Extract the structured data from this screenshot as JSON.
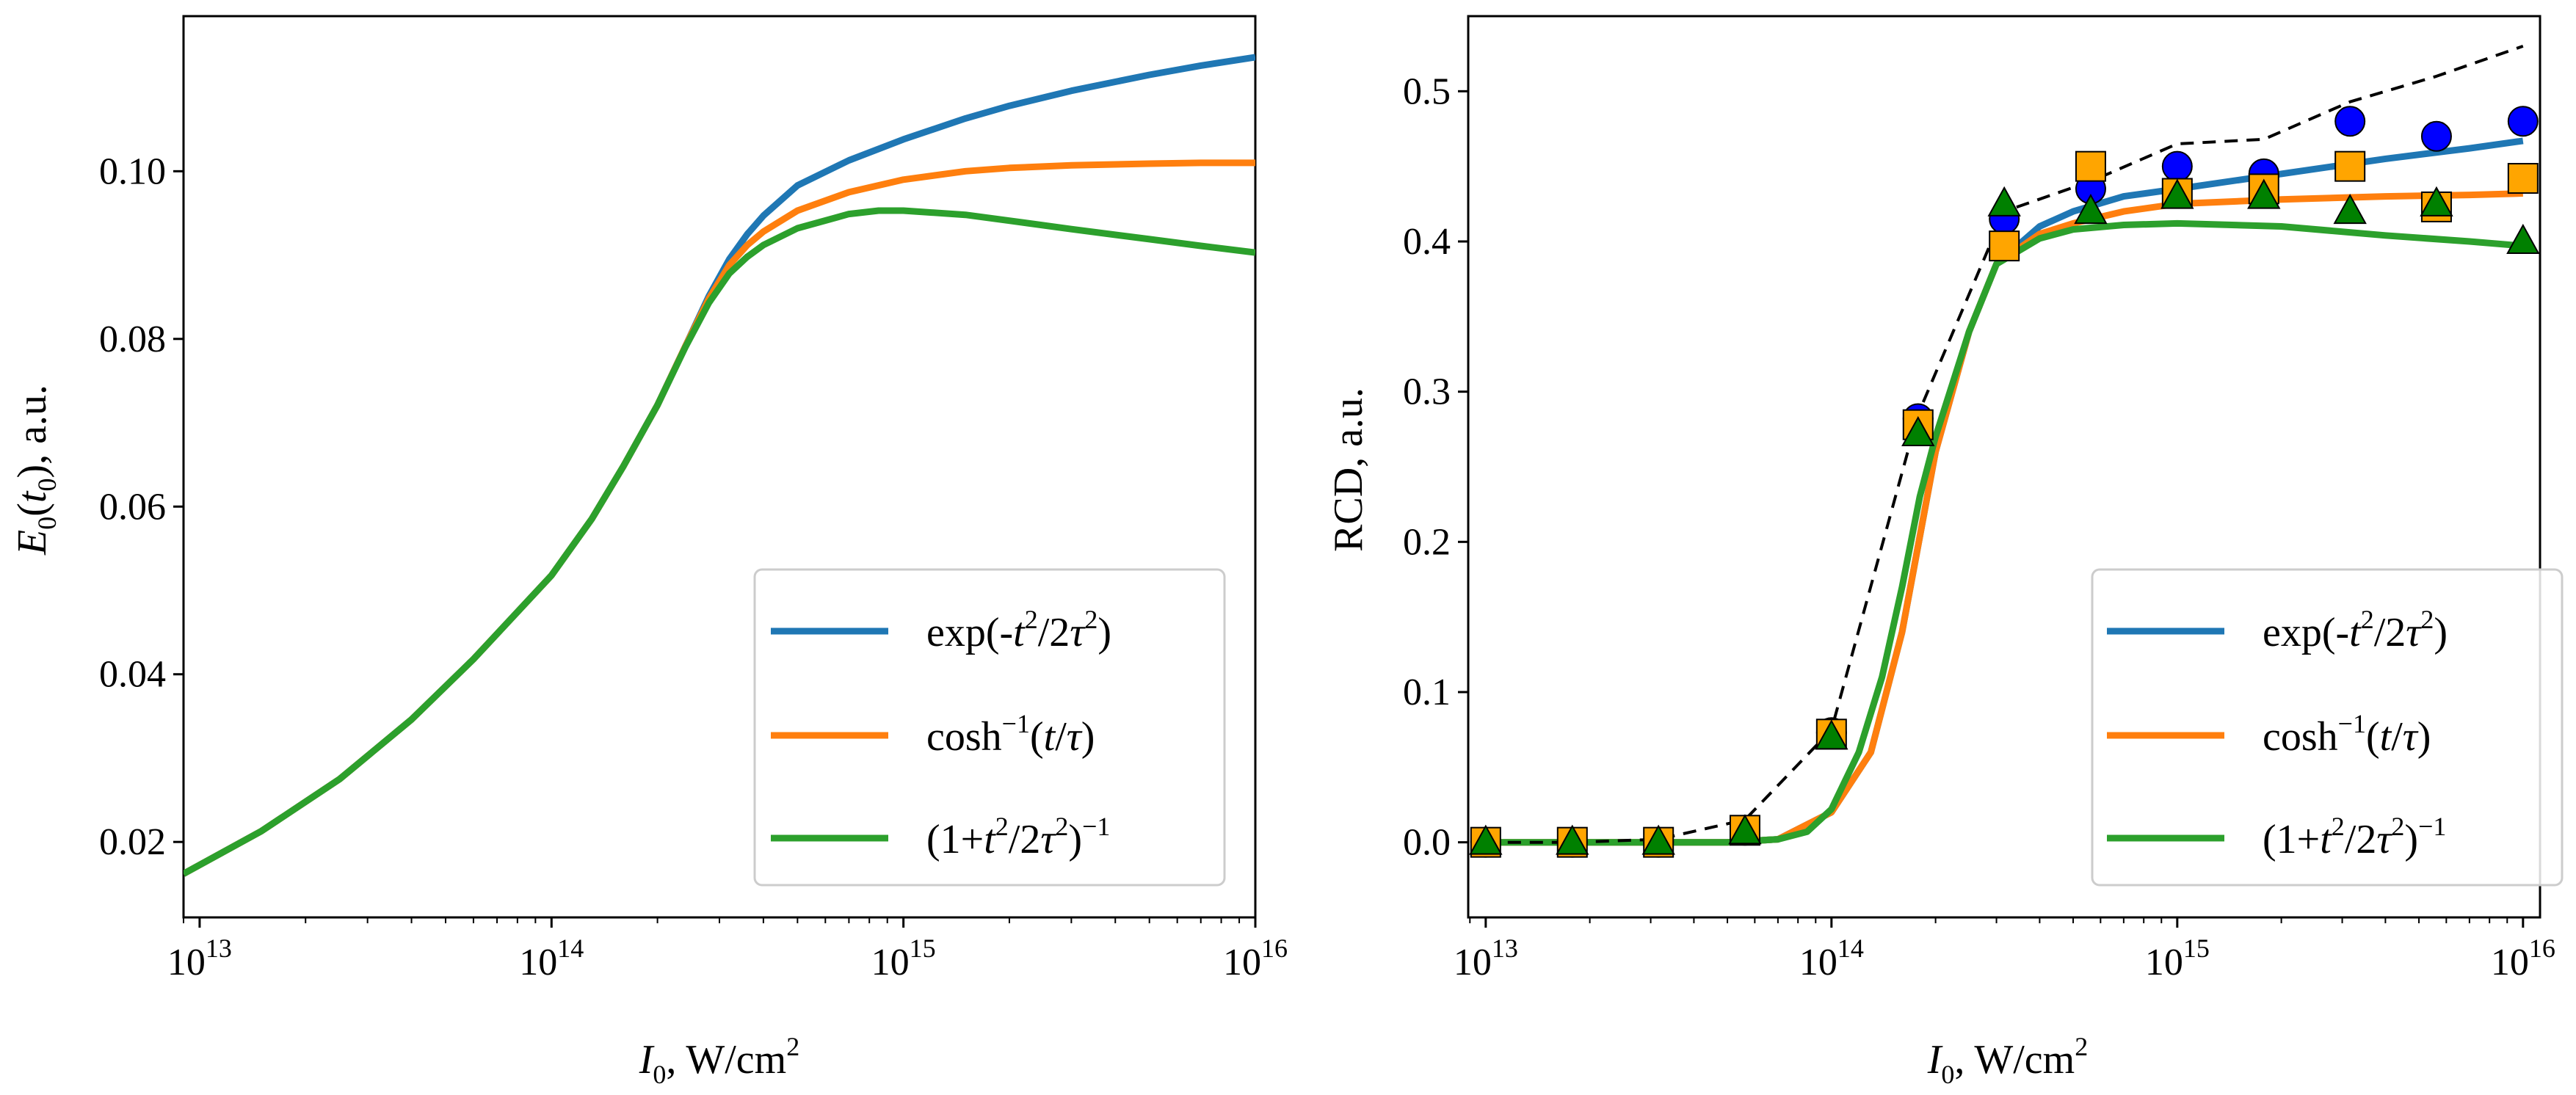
{
  "colors": {
    "exp": "#1f77b4",
    "cosh": "#ff7f0e",
    "lor": "#2ca02c",
    "circle_marker": "#0000ff",
    "square_marker": "#ffa500",
    "triangle_marker": "#008000",
    "dashed": "#000000"
  },
  "legend": {
    "exp": {
      "pre": "exp(-",
      "t": "t",
      "sup1": "2",
      "mid": "/2",
      "tau": "τ",
      "sup2": "2",
      "post": ")"
    },
    "cosh": {
      "pre": "cosh",
      "sup": "−1",
      "open": "(",
      "t": "t",
      "slash": "/",
      "tau": "τ",
      "close": ")"
    },
    "lor": {
      "pre": "(1+",
      "t": "t",
      "sup1": "2",
      "mid": "/2",
      "tau": "τ",
      "sup2": "2",
      "close": ")",
      "sup3": "−1"
    }
  },
  "xaxis": {
    "label_var": "I",
    "label_sub": "0",
    "label_unit": ", W/cm",
    "label_sup": "2",
    "ticks": [
      {
        "value": 10000000000000.0,
        "base": "10",
        "exp": "13"
      },
      {
        "value": 100000000000000.0,
        "base": "10",
        "exp": "14"
      },
      {
        "value": 1000000000000000.0,
        "base": "10",
        "exp": "15"
      },
      {
        "value": 1e+16,
        "base": "10",
        "exp": "16"
      }
    ]
  },
  "chart_data": [
    {
      "type": "line",
      "title": "",
      "xscale": "log",
      "xlim": [
        9000000000000.0,
        1e+16
      ],
      "ylim": [
        0.011,
        0.1185
      ],
      "ylabel": {
        "var": "E",
        "sub1": "0",
        "open": "(",
        "t": "t",
        "sub2": "0",
        "close": "), a.u."
      },
      "yticks": [
        "0.02",
        "0.04",
        "0.06",
        "0.08",
        "0.10"
      ],
      "legend_position": "lower-right",
      "series": [
        {
          "name": "exp(-t^2/2τ^2)",
          "color_key": "exp",
          "x": [
            9000000000000.0,
            15000000000000.0,
            25000000000000.0,
            40000000000000.0,
            60000000000000.0,
            100000000000000.0,
            130000000000000.0,
            160000000000000.0,
            200000000000000.0,
            240000000000000.0,
            280000000000000.0,
            320000000000000.0,
            360000000000000.0,
            400000000000000.0,
            500000000000000.0,
            700000000000000.0,
            1000000000000000.0,
            1500000000000000.0,
            2000000000000000.0,
            3000000000000000.0,
            5000000000000000.0,
            7000000000000000.0,
            1e+16
          ],
          "values": [
            0.0162,
            0.0213,
            0.0275,
            0.0346,
            0.0418,
            0.0518,
            0.0585,
            0.0648,
            0.0721,
            0.0791,
            0.0851,
            0.0895,
            0.0925,
            0.0947,
            0.0983,
            0.1013,
            0.1038,
            0.1063,
            0.1078,
            0.1096,
            0.1115,
            0.1126,
            0.1136
          ]
        },
        {
          "name": "cosh^-1(t/τ)",
          "color_key": "cosh",
          "x": [
            9000000000000.0,
            15000000000000.0,
            25000000000000.0,
            40000000000000.0,
            60000000000000.0,
            100000000000000.0,
            130000000000000.0,
            160000000000000.0,
            200000000000000.0,
            240000000000000.0,
            280000000000000.0,
            320000000000000.0,
            360000000000000.0,
            400000000000000.0,
            500000000000000.0,
            700000000000000.0,
            1000000000000000.0,
            1500000000000000.0,
            2000000000000000.0,
            3000000000000000.0,
            5000000000000000.0,
            7000000000000000.0,
            1e+16
          ],
          "values": [
            0.0162,
            0.0213,
            0.0275,
            0.0346,
            0.0418,
            0.0518,
            0.0585,
            0.0648,
            0.0721,
            0.0791,
            0.0848,
            0.0888,
            0.0912,
            0.0928,
            0.0953,
            0.0975,
            0.099,
            0.1,
            0.1004,
            0.1007,
            0.1009,
            0.101,
            0.101
          ]
        },
        {
          "name": "(1+t^2/2τ^2)^-1",
          "color_key": "lor",
          "x": [
            9000000000000.0,
            15000000000000.0,
            25000000000000.0,
            40000000000000.0,
            60000000000000.0,
            100000000000000.0,
            130000000000000.0,
            160000000000000.0,
            200000000000000.0,
            240000000000000.0,
            280000000000000.0,
            320000000000000.0,
            360000000000000.0,
            400000000000000.0,
            500000000000000.0,
            700000000000000.0,
            850000000000000.0,
            1000000000000000.0,
            1500000000000000.0,
            2000000000000000.0,
            3000000000000000.0,
            5000000000000000.0,
            7000000000000000.0,
            1e+16
          ],
          "values": [
            0.0162,
            0.0213,
            0.0275,
            0.0346,
            0.0418,
            0.0518,
            0.0585,
            0.0648,
            0.0721,
            0.079,
            0.0843,
            0.0878,
            0.0898,
            0.0912,
            0.0932,
            0.0949,
            0.0953,
            0.0953,
            0.0948,
            0.0941,
            0.0931,
            0.0919,
            0.0911,
            0.0903
          ]
        }
      ]
    },
    {
      "type": "line",
      "title": "",
      "xscale": "log",
      "xlim": [
        8900000000000.0,
        1.12e+16
      ],
      "ylim": [
        -0.05,
        0.55
      ],
      "ylabel": {
        "text": "RCD, a.u."
      },
      "yticks": [
        "0.0",
        "0.1",
        "0.2",
        "0.3",
        "0.4",
        "0.5"
      ],
      "legend_position": "lower-right",
      "series": [
        {
          "name": "exp(-t^2/2τ^2)",
          "color_key": "exp",
          "x": [
            10000000000000.0,
            30000000000000.0,
            50000000000000.0,
            70000000000000.0,
            100000000000000.0,
            130000000000000.0,
            160000000000000.0,
            200000000000000.0,
            250000000000000.0,
            300000000000000.0,
            400000000000000.0,
            500000000000000.0,
            700000000000000.0,
            1000000000000000.0,
            2000000000000000.0,
            4000000000000000.0,
            7000000000000000.0,
            1e+16
          ],
          "values": [
            0.0,
            0.0,
            0.0,
            0.002,
            0.02,
            0.06,
            0.14,
            0.26,
            0.34,
            0.385,
            0.41,
            0.42,
            0.43,
            0.435,
            0.445,
            0.455,
            0.462,
            0.467
          ]
        },
        {
          "name": "cosh^-1(t/τ)",
          "color_key": "cosh",
          "x": [
            10000000000000.0,
            30000000000000.0,
            50000000000000.0,
            70000000000000.0,
            100000000000000.0,
            130000000000000.0,
            160000000000000.0,
            200000000000000.0,
            250000000000000.0,
            300000000000000.0,
            400000000000000.0,
            500000000000000.0,
            700000000000000.0,
            1000000000000000.0,
            2000000000000000.0,
            4000000000000000.0,
            7000000000000000.0,
            1e+16
          ],
          "values": [
            0.0,
            0.0,
            0.0,
            0.002,
            0.02,
            0.06,
            0.14,
            0.26,
            0.34,
            0.385,
            0.405,
            0.412,
            0.42,
            0.425,
            0.428,
            0.43,
            0.431,
            0.432
          ]
        },
        {
          "name": "(1+t^2/2τ^2)^-1",
          "color_key": "lor",
          "x": [
            10000000000000.0,
            30000000000000.0,
            50000000000000.0,
            70000000000000.0,
            85000000000000.0,
            100000000000000.0,
            120000000000000.0,
            140000000000000.0,
            160000000000000.0,
            180000000000000.0,
            200000000000000.0,
            250000000000000.0,
            300000000000000.0,
            400000000000000.0,
            500000000000000.0,
            700000000000000.0,
            1000000000000000.0,
            2000000000000000.0,
            4000000000000000.0,
            7000000000000000.0,
            1e+16
          ],
          "values": [
            0.0,
            0.0,
            0.0,
            0.002,
            0.007,
            0.022,
            0.06,
            0.11,
            0.17,
            0.23,
            0.27,
            0.34,
            0.385,
            0.402,
            0.408,
            0.411,
            0.412,
            0.41,
            0.404,
            0.4,
            0.397
          ]
        },
        {
          "name": "dashed reference",
          "color_key": "dashed",
          "style": "dashed",
          "x": [
            10000000000000.0,
            17800000000000.0,
            31600000000000.0,
            56200000000000.0,
            100000000000000.0,
            178000000000000.0,
            316000000000000.0,
            562000000000000.0,
            1000000000000000.0,
            1780000000000000.0,
            3160000000000000.0,
            5620000000000000.0,
            1e+16
          ],
          "values": [
            0.0,
            0.0,
            0.002,
            0.015,
            0.075,
            0.285,
            0.42,
            0.44,
            0.465,
            0.468,
            0.493,
            0.51,
            0.53
          ]
        },
        {
          "name": "circles",
          "marker": "circle",
          "color_key": "circle_marker",
          "x": [
            10000000000000.0,
            17800000000000.0,
            31600000000000.0,
            56200000000000.0,
            100000000000000.0,
            178000000000000.0,
            316000000000000.0,
            562000000000000.0,
            1000000000000000.0,
            1780000000000000.0,
            3160000000000000.0,
            5620000000000000.0,
            1e+16
          ],
          "values": [
            0.0,
            0.0,
            0.0,
            0.008,
            0.073,
            0.282,
            0.415,
            0.435,
            0.45,
            0.445,
            0.48,
            0.47,
            0.48
          ]
        },
        {
          "name": "squares",
          "marker": "square",
          "color_key": "square_marker",
          "x": [
            10000000000000.0,
            17800000000000.0,
            31600000000000.0,
            56200000000000.0,
            100000000000000.0,
            178000000000000.0,
            316000000000000.0,
            562000000000000.0,
            1000000000000000.0,
            1780000000000000.0,
            3160000000000000.0,
            5620000000000000.0,
            1e+16
          ],
          "values": [
            0.0,
            0.0,
            0.0,
            0.008,
            0.072,
            0.278,
            0.397,
            0.45,
            0.432,
            0.435,
            0.45,
            0.423,
            0.442
          ]
        },
        {
          "name": "triangles",
          "marker": "triangle",
          "color_key": "triangle_marker",
          "x": [
            10000000000000.0,
            17800000000000.0,
            31600000000000.0,
            56200000000000.0,
            100000000000000.0,
            178000000000000.0,
            316000000000000.0,
            562000000000000.0,
            1000000000000000.0,
            1780000000000000.0,
            3160000000000000.0,
            5620000000000000.0,
            1e+16
          ],
          "values": [
            0.0,
            0.0,
            0.0,
            0.007,
            0.07,
            0.272,
            0.425,
            0.42,
            0.43,
            0.43,
            0.42,
            0.425,
            0.4
          ]
        }
      ]
    }
  ]
}
